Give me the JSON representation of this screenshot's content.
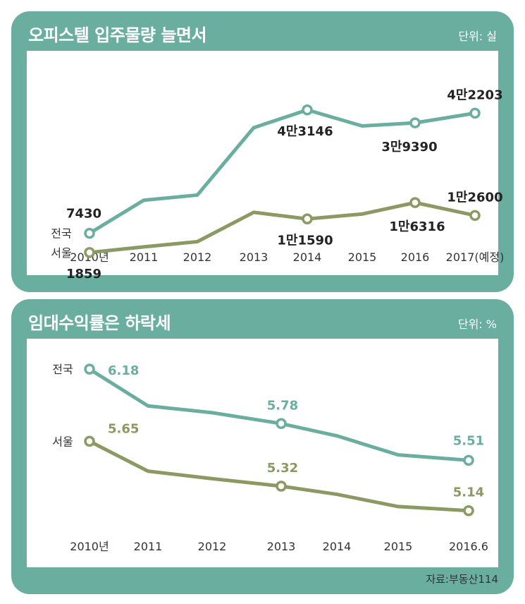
{
  "chart_data": [
    {
      "type": "line",
      "title": "오피스텔 입주물량 늘면서",
      "unit": "단위: 실",
      "categories": [
        "2010년",
        "2011",
        "2012",
        "2013",
        "2014",
        "2015",
        "2016",
        "2017(예정)"
      ],
      "ylim": [
        0,
        48000
      ],
      "series": [
        {
          "name": "전국",
          "color": "#6aaea0",
          "values": [
            7430,
            17000,
            18500,
            38000,
            43146,
            38500,
            39390,
            42203
          ],
          "labels": [
            "7430",
            "",
            "",
            "",
            "4만3146",
            "",
            "3만9390",
            "4만2203"
          ]
        },
        {
          "name": "서울",
          "color": "#8a9a62",
          "values": [
            1859,
            3500,
            5000,
            13500,
            11590,
            13000,
            16316,
            12600
          ],
          "labels": [
            "1859",
            "",
            "",
            "",
            "1만1590",
            "",
            "1만6316",
            "1만2600"
          ]
        }
      ]
    },
    {
      "type": "line",
      "title": "임대수익률은 하락세",
      "unit": "단위: %",
      "categories": [
        "2010년",
        "2011",
        "2012",
        "2013",
        "2014",
        "2015",
        "2016.6"
      ],
      "ylim": [
        4.9,
        6.3
      ],
      "series": [
        {
          "name": "전국",
          "color": "#6aaea0",
          "values": [
            6.18,
            5.91,
            5.86,
            5.78,
            5.69,
            5.55,
            5.51
          ],
          "labels": [
            "6.18",
            "",
            "",
            "5.78",
            "",
            "",
            "5.51"
          ]
        },
        {
          "name": "서울",
          "color": "#8a9a62",
          "values": [
            5.65,
            5.43,
            5.375,
            5.32,
            5.26,
            5.17,
            5.14
          ],
          "labels": [
            "5.65",
            "",
            "",
            "5.32",
            "",
            "",
            "5.14"
          ]
        }
      ]
    }
  ],
  "source": "자료:부동산114"
}
